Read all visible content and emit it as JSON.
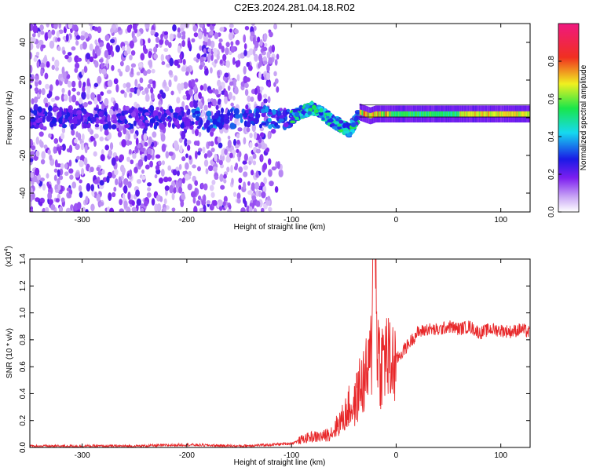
{
  "title": "C2E3.2024.281.04.18.R02",
  "chart_data": [
    {
      "type": "heatmap",
      "xlabel": "Height of straight line (km)",
      "ylabel": "Frequency (Hz)",
      "xlim": [
        -350,
        128
      ],
      "ylim": [
        -50,
        50
      ],
      "x_ticks": [
        -300,
        -200,
        -100,
        0,
        100
      ],
      "x_tick_labels": [
        "-300",
        "-200",
        "-100",
        "0",
        "100"
      ],
      "y_ticks": [
        -40,
        -20,
        0,
        20,
        40
      ],
      "y_tick_labels": [
        "-40",
        "-20",
        "0",
        "20",
        "40"
      ],
      "colorbar": {
        "label": "Normalized spectral amplitude",
        "range": [
          0,
          1
        ],
        "ticks": [
          0.0,
          0.2,
          0.4,
          0.6,
          0.8
        ],
        "tick_labels": [
          "0.0",
          "0.2",
          "0.4",
          "0.6",
          "0.8"
        ],
        "colormap": "rainbow-white-purple-blue-cyan-green-yellow-red-magenta"
      },
      "regions": [
        {
          "x_range": [
            -350,
            -120
          ],
          "y_range": [
            -50,
            50
          ],
          "description": "scattered purple noise",
          "amplitude": 0.15
        },
        {
          "x_range": [
            -195,
            -100
          ],
          "y_center": 0,
          "description": "noisy band near 0 Hz",
          "amplitude": 0.3
        },
        {
          "x_range": [
            -100,
            -35
          ],
          "description": "wavy band",
          "amplitude": 0.5
        },
        {
          "x_range": [
            -35,
            128
          ],
          "y_center": 2,
          "description": "narrow strong line",
          "amplitude": 0.8
        }
      ],
      "band_centerline": {
        "x": [
          -195,
          -180,
          -160,
          -140,
          -120,
          -100,
          -90,
          -80,
          -70,
          -60,
          -50,
          -45,
          -40,
          -35,
          -30,
          -25,
          -20,
          -10,
          0,
          20,
          50,
          100,
          128
        ],
        "y": [
          0,
          -2,
          0,
          1,
          0,
          0,
          3,
          5,
          2,
          -2,
          -5,
          -7,
          -3,
          3,
          2,
          1,
          2,
          2,
          2,
          2,
          2,
          2,
          2
        ]
      }
    },
    {
      "type": "line",
      "xlabel": "Height of straight line (km)",
      "ylabel": "SNR (10 * v/v)",
      "scale_note": "(x10",
      "scale_exp": "4",
      "xlim": [
        -350,
        128
      ],
      "ylim": [
        0,
        1.4
      ],
      "x_ticks": [
        -300,
        -200,
        -100,
        0,
        100
      ],
      "x_tick_labels": [
        "-300",
        "-200",
        "-100",
        "0",
        "100"
      ],
      "y_ticks": [
        0.0,
        0.2,
        0.4,
        0.6,
        0.8,
        1.0,
        1.2,
        1.4
      ],
      "y_tick_labels": [
        "0.0",
        "0.2",
        "0.4",
        "0.6",
        "0.8",
        "1.0",
        "1.2",
        "1.4"
      ],
      "series": [
        {
          "color": "#e8282a",
          "x": [
            -350,
            -300,
            -250,
            -200,
            -150,
            -120,
            -100,
            -90,
            -80,
            -70,
            -60,
            -55,
            -50,
            -45,
            -40,
            -35,
            -30,
            -25,
            -22,
            -20,
            -18,
            -15,
            -10,
            -5,
            0,
            5,
            10,
            20,
            30,
            40,
            50,
            60,
            70,
            80,
            90,
            100,
            110,
            120,
            128
          ],
          "y": [
            0.01,
            0.01,
            0.01,
            0.02,
            0.01,
            0.02,
            0.03,
            0.06,
            0.08,
            0.08,
            0.12,
            0.18,
            0.22,
            0.3,
            0.3,
            0.45,
            0.5,
            0.6,
            0.9,
            1.4,
            0.8,
            0.6,
            0.7,
            0.6,
            0.65,
            0.7,
            0.75,
            0.85,
            0.88,
            0.87,
            0.9,
            0.88,
            0.9,
            0.85,
            0.88,
            0.87,
            0.86,
            0.88,
            0.85
          ]
        }
      ]
    }
  ]
}
